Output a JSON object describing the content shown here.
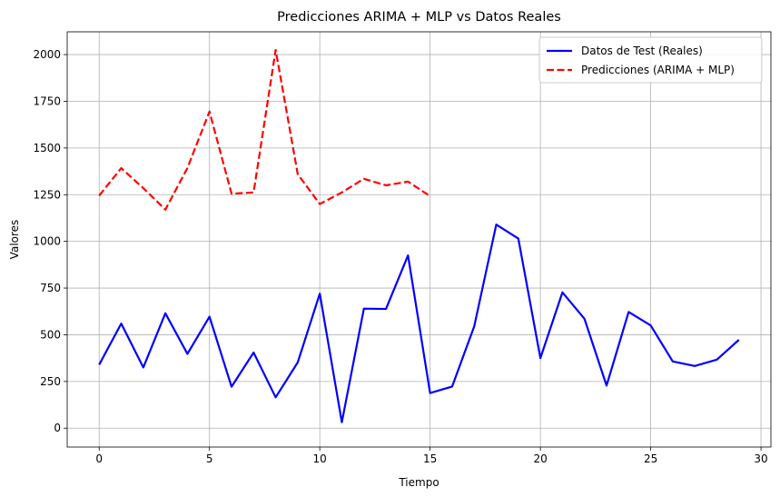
{
  "chart_data": {
    "type": "line",
    "title": "Predicciones ARIMA + MLP vs Datos Reales",
    "xlabel": "Tiempo",
    "ylabel": "Valores",
    "xlim": [
      -1.45,
      30.45
    ],
    "ylim": [
      -101,
      2122
    ],
    "xticks": [
      0,
      5,
      10,
      15,
      20,
      25,
      30
    ],
    "yticks": [
      0,
      250,
      500,
      750,
      1000,
      1250,
      1500,
      1750,
      2000
    ],
    "grid": true,
    "legend_position": "top-right",
    "series": [
      {
        "name": "Datos de Test (Reales)",
        "color": "#0000ff",
        "dash": "solid",
        "x": [
          0,
          1,
          2,
          3,
          4,
          5,
          6,
          7,
          8,
          9,
          10,
          11,
          12,
          13,
          14,
          15,
          16,
          17,
          18,
          19,
          20,
          21,
          22,
          23,
          24,
          25,
          26,
          27,
          28,
          29
        ],
        "values": [
          340,
          560,
          325,
          615,
          398,
          597,
          222,
          405,
          165,
          352,
          720,
          32,
          640,
          638,
          925,
          188,
          223,
          545,
          1090,
          1015,
          375,
          727,
          585,
          228,
          622,
          550,
          357,
          333,
          367,
          473
        ]
      },
      {
        "name": "Predicciones (ARIMA + MLP)",
        "color": "#ff0000",
        "dash": "dashed",
        "x": [
          0,
          1,
          2,
          3,
          4,
          5,
          6,
          7,
          8,
          9,
          10,
          11,
          12,
          13,
          14,
          15
        ],
        "values": [
          1245,
          1392,
          1285,
          1170,
          1393,
          1695,
          1255,
          1262,
          2025,
          1360,
          1200,
          1262,
          1335,
          1300,
          1320,
          1242
        ]
      }
    ]
  }
}
